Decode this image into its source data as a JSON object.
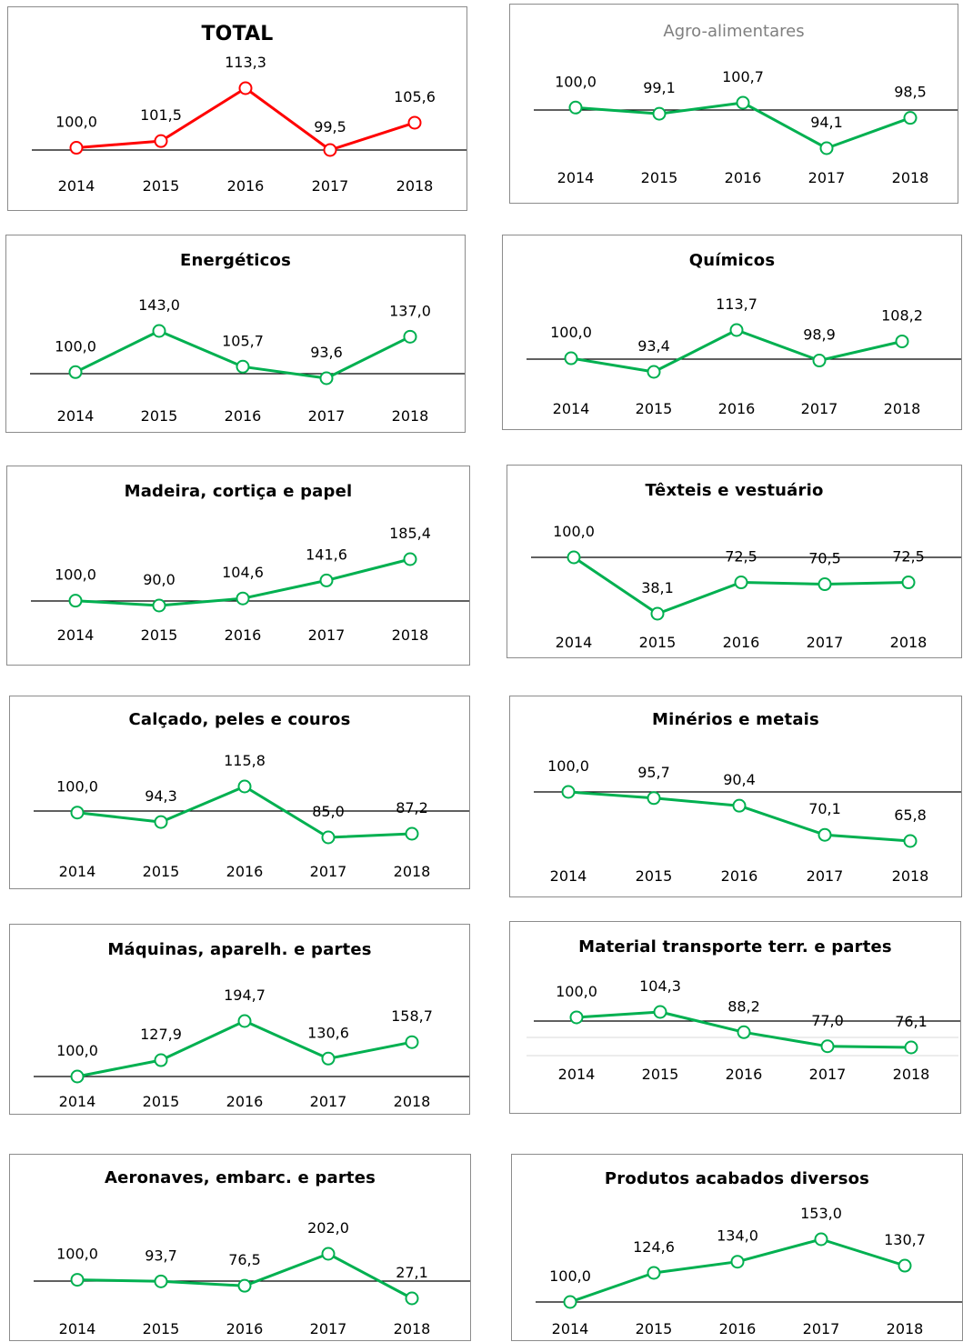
{
  "colors": {
    "total": "#ff0000",
    "series": "#00b050",
    "baseline": "#000000",
    "grid": "#d9d9d9"
  },
  "chart_data": [
    {
      "id": "total",
      "type": "line",
      "title": "TOTAL",
      "title_style": "bold-large",
      "x": [
        "2014",
        "2015",
        "2016",
        "2017",
        "2018"
      ],
      "values": [
        100.0,
        101.5,
        113.3,
        99.5,
        105.6
      ],
      "labels": [
        "100,0",
        "101,5",
        "113,3",
        "99,5",
        "105,6"
      ],
      "baseline": 100
    },
    {
      "id": "agro",
      "type": "line",
      "title": "Agro-alimentares",
      "title_style": "light",
      "x": [
        "2014",
        "2015",
        "2016",
        "2017",
        "2018"
      ],
      "values": [
        100.0,
        99.1,
        100.7,
        94.1,
        98.5
      ],
      "labels": [
        "100,0",
        "99,1",
        "100,7",
        "94,1",
        "98,5"
      ],
      "baseline": 100
    },
    {
      "id": "energeticos",
      "type": "line",
      "title": "Energéticos",
      "title_style": "bold",
      "x": [
        "2014",
        "2015",
        "2016",
        "2017",
        "2018"
      ],
      "values": [
        100.0,
        143.0,
        105.7,
        93.6,
        137.0
      ],
      "labels": [
        "100,0",
        "143,0",
        "105,7",
        "93,6",
        "137,0"
      ],
      "baseline": 100
    },
    {
      "id": "quimicos",
      "type": "line",
      "title": "Químicos",
      "title_style": "bold",
      "x": [
        "2014",
        "2015",
        "2016",
        "2017",
        "2018"
      ],
      "values": [
        100.0,
        93.4,
        113.7,
        98.9,
        108.2
      ],
      "labels": [
        "100,0",
        "93,4",
        "113,7",
        "98,9",
        "108,2"
      ],
      "baseline": 100
    },
    {
      "id": "madeira",
      "type": "line",
      "title": "Madeira, cortiça e papel",
      "title_style": "bold",
      "x": [
        "2014",
        "2015",
        "2016",
        "2017",
        "2018"
      ],
      "values": [
        100.0,
        90.0,
        104.6,
        141.6,
        185.4
      ],
      "labels": [
        "100,0",
        "90,0",
        "104,6",
        "141,6",
        "185,4"
      ],
      "baseline": 100
    },
    {
      "id": "texteis",
      "type": "line",
      "title": "Têxteis e vestuário",
      "title_style": "bold",
      "x": [
        "2014",
        "2015",
        "2016",
        "2017",
        "2018"
      ],
      "values": [
        100.0,
        38.1,
        72.5,
        70.5,
        72.5
      ],
      "labels": [
        "100,0",
        "38,1",
        "72,5",
        "70,5",
        "72,5"
      ],
      "baseline": 100
    },
    {
      "id": "calcado",
      "type": "line",
      "title": "Calçado,  peles e couros",
      "title_style": "bold",
      "x": [
        "2014",
        "2015",
        "2016",
        "2017",
        "2018"
      ],
      "values": [
        100.0,
        94.3,
        115.8,
        85.0,
        87.2
      ],
      "labels": [
        "100,0",
        "94,3",
        "115,8",
        "85,0",
        "87,2"
      ],
      "baseline": 100
    },
    {
      "id": "minerios",
      "type": "line",
      "title": "Minérios e metais",
      "title_style": "bold",
      "x": [
        "2014",
        "2015",
        "2016",
        "2017",
        "2018"
      ],
      "values": [
        100.0,
        95.7,
        90.4,
        70.1,
        65.8
      ],
      "labels": [
        "100,0",
        "95,7",
        "90,4",
        "70,1",
        "65,8"
      ],
      "baseline": 100
    },
    {
      "id": "maquinas",
      "type": "line",
      "title": "Máquinas,  aparelh. e partes",
      "title_style": "bold",
      "x": [
        "2014",
        "2015",
        "2016",
        "2017",
        "2018"
      ],
      "values": [
        100.0,
        127.9,
        194.7,
        130.6,
        158.7
      ],
      "labels": [
        "100,0",
        "127,9",
        "194,7",
        "130,6",
        "158,7"
      ],
      "baseline": 100
    },
    {
      "id": "transporte",
      "type": "line",
      "title": "Material transporte terr. e partes",
      "title_style": "bold",
      "x": [
        "2014",
        "2015",
        "2016",
        "2017",
        "2018"
      ],
      "values": [
        100.0,
        104.3,
        88.2,
        77.0,
        76.1
      ],
      "labels": [
        "100,0",
        "104,3",
        "88,2",
        "77,0",
        "76,1"
      ],
      "baseline": 100
    },
    {
      "id": "aeronaves",
      "type": "line",
      "title": "Aeronaves, embarc. e partes",
      "title_style": "bold",
      "x": [
        "2014",
        "2015",
        "2016",
        "2017",
        "2018"
      ],
      "values": [
        100.0,
        93.7,
        76.5,
        202.0,
        27.1
      ],
      "labels": [
        "100,0",
        "93,7",
        "76,5",
        "202,0",
        "27,1"
      ],
      "baseline": 100
    },
    {
      "id": "acabados",
      "type": "line",
      "title": "Produtos acabados  diversos",
      "title_style": "bold",
      "x": [
        "2014",
        "2015",
        "2016",
        "2017",
        "2018"
      ],
      "values": [
        100.0,
        124.6,
        134.0,
        153.0,
        130.7
      ],
      "labels": [
        "100,0",
        "124,6",
        "134,0",
        "153,0",
        "130,7"
      ],
      "baseline": 100
    }
  ]
}
